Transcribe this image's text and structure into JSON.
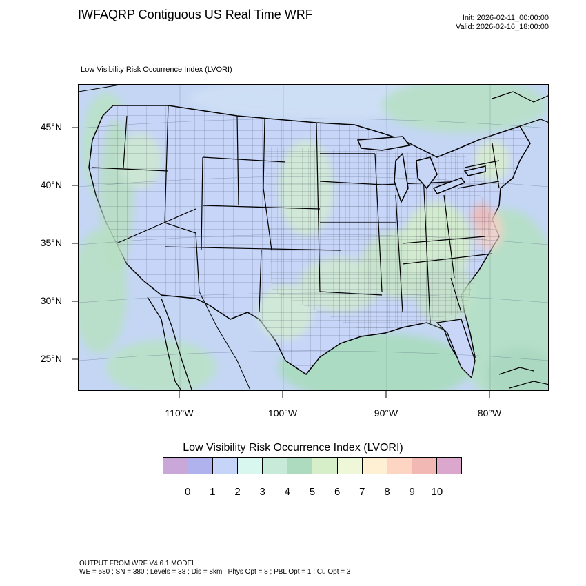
{
  "title": "IWFAQRP Contiguous US Real Time WRF",
  "init": "Init: 2026-02-11_00:00:00",
  "valid": "Valid: 2026-02-16_18:00:00",
  "field_label": "Low Visibility Risk Occurrence Index   (LVORI)",
  "lat_labels": [
    "45°N",
    "40°N",
    "35°N",
    "30°N",
    "25°N"
  ],
  "lon_labels": [
    "110°W",
    "100°W",
    "90°W",
    "80°W"
  ],
  "colorbar": {
    "title": "Low Visibility Risk Occurrence Index  (LVORI)",
    "ticks": [
      "0",
      "1",
      "2",
      "3",
      "4",
      "5",
      "6",
      "7",
      "8",
      "9",
      "10"
    ],
    "colors": [
      "#c9a7d9",
      "#afb2ed",
      "#c6d4f8",
      "#d8f8ef",
      "#c7ebd8",
      "#acdbc0",
      "#d6efc8",
      "#eef8d8",
      "#fff0d4",
      "#fdd5c2",
      "#f1b8b4",
      "#dca7cd"
    ]
  },
  "footer": {
    "line1": "OUTPUT FROM WRF V4.6.1 MODEL",
    "line2": "WE = 580 ; SN = 380 ; Levels = 38 ; Dis = 8km ; Phys Opt = 8 ; PBL Opt = 1 ; Cu Opt = 3"
  }
}
